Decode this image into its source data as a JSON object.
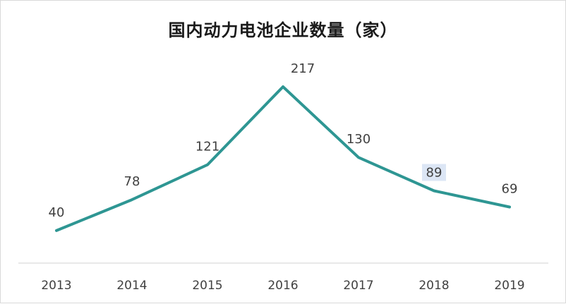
{
  "chart_data": {
    "type": "line",
    "title": "国内动力电池企业数量（家）",
    "categories": [
      "2013",
      "2014",
      "2015",
      "2016",
      "2017",
      "2018",
      "2019"
    ],
    "series": [
      {
        "values": [
          40,
          78,
          121,
          217,
          130,
          89,
          69
        ]
      }
    ],
    "data_labels": [
      "40",
      "78",
      "121",
      "217",
      "130",
      "89",
      "69"
    ],
    "xlabel": "",
    "ylabel": "",
    "ylim": [
      0,
      250
    ],
    "grid": false,
    "legend": "none",
    "colors": {
      "line": "#2e9693",
      "axis": "#d9d9d9",
      "highlight_label_bg": "#dce6f5"
    },
    "highlighted_label_index": 5
  }
}
